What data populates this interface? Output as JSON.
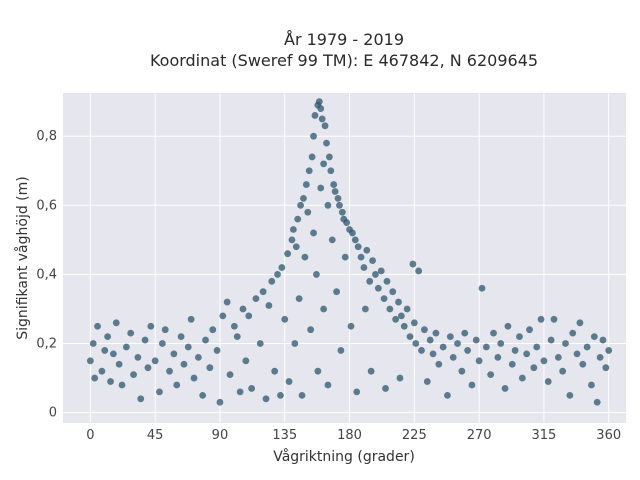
{
  "chart_data": {
    "type": "scatter",
    "title_lines": [
      "År 1979 - 2019",
      "Koordinat (Sweref 99 TM): E 467842, N 6209645"
    ],
    "xlabel": "Vågriktning (grader)",
    "ylabel": "Signifikant våghöjd (m)",
    "xlim": [
      -19,
      372
    ],
    "ylim": [
      -0.03,
      0.925
    ],
    "x_ticks": [
      {
        "value": 0,
        "label": "0"
      },
      {
        "value": 45,
        "label": "45"
      },
      {
        "value": 90,
        "label": "90"
      },
      {
        "value": 135,
        "label": "135"
      },
      {
        "value": 180,
        "label": "180"
      },
      {
        "value": 225,
        "label": "225"
      },
      {
        "value": 270,
        "label": "270"
      },
      {
        "value": 315,
        "label": "315"
      },
      {
        "value": 360,
        "label": "360"
      }
    ],
    "y_ticks": [
      {
        "value": 0,
        "label": "0"
      },
      {
        "value": 0.2,
        "label": "0,2"
      },
      {
        "value": 0.4,
        "label": "0,4"
      },
      {
        "value": 0.6,
        "label": "0,6"
      },
      {
        "value": 0.8,
        "label": "0,8"
      }
    ],
    "grid": true,
    "marker_color": "#2e566d",
    "background_color": "#e5e6ee",
    "points": [
      [
        0,
        0.15
      ],
      [
        2,
        0.2
      ],
      [
        3,
        0.1
      ],
      [
        5,
        0.25
      ],
      [
        8,
        0.12
      ],
      [
        10,
        0.18
      ],
      [
        12,
        0.22
      ],
      [
        14,
        0.09
      ],
      [
        16,
        0.17
      ],
      [
        18,
        0.26
      ],
      [
        20,
        0.14
      ],
      [
        22,
        0.08
      ],
      [
        25,
        0.19
      ],
      [
        28,
        0.23
      ],
      [
        30,
        0.11
      ],
      [
        33,
        0.16
      ],
      [
        35,
        0.04
      ],
      [
        38,
        0.21
      ],
      [
        40,
        0.13
      ],
      [
        42,
        0.25
      ],
      [
        45,
        0.15
      ],
      [
        48,
        0.06
      ],
      [
        50,
        0.2
      ],
      [
        52,
        0.24
      ],
      [
        55,
        0.12
      ],
      [
        58,
        0.17
      ],
      [
        60,
        0.08
      ],
      [
        63,
        0.22
      ],
      [
        65,
        0.14
      ],
      [
        68,
        0.19
      ],
      [
        70,
        0.27
      ],
      [
        72,
        0.1
      ],
      [
        75,
        0.16
      ],
      [
        78,
        0.05
      ],
      [
        80,
        0.21
      ],
      [
        83,
        0.13
      ],
      [
        85,
        0.24
      ],
      [
        88,
        0.18
      ],
      [
        90,
        0.03
      ],
      [
        92,
        0.28
      ],
      [
        95,
        0.32
      ],
      [
        97,
        0.11
      ],
      [
        100,
        0.25
      ],
      [
        102,
        0.22
      ],
      [
        104,
        0.06
      ],
      [
        106,
        0.3
      ],
      [
        108,
        0.15
      ],
      [
        110,
        0.28
      ],
      [
        112,
        0.07
      ],
      [
        115,
        0.33
      ],
      [
        118,
        0.2
      ],
      [
        120,
        0.35
      ],
      [
        122,
        0.04
      ],
      [
        124,
        0.31
      ],
      [
        126,
        0.38
      ],
      [
        128,
        0.12
      ],
      [
        130,
        0.4
      ],
      [
        132,
        0.05
      ],
      [
        133,
        0.42
      ],
      [
        135,
        0.27
      ],
      [
        137,
        0.46
      ],
      [
        138,
        0.09
      ],
      [
        140,
        0.5
      ],
      [
        141,
        0.53
      ],
      [
        142,
        0.2
      ],
      [
        143,
        0.48
      ],
      [
        144,
        0.56
      ],
      [
        145,
        0.33
      ],
      [
        146,
        0.6
      ],
      [
        147,
        0.05
      ],
      [
        148,
        0.62
      ],
      [
        149,
        0.45
      ],
      [
        150,
        0.66
      ],
      [
        151,
        0.58
      ],
      [
        152,
        0.7
      ],
      [
        153,
        0.24
      ],
      [
        154,
        0.74
      ],
      [
        155,
        0.8
      ],
      [
        155,
        0.52
      ],
      [
        156,
        0.86
      ],
      [
        157,
        0.4
      ],
      [
        158,
        0.89
      ],
      [
        158,
        0.12
      ],
      [
        159,
        0.9
      ],
      [
        160,
        0.88
      ],
      [
        160,
        0.65
      ],
      [
        161,
        0.85
      ],
      [
        162,
        0.72
      ],
      [
        162,
        0.3
      ],
      [
        163,
        0.83
      ],
      [
        164,
        0.78
      ],
      [
        165,
        0.6
      ],
      [
        165,
        0.08
      ],
      [
        166,
        0.74
      ],
      [
        167,
        0.7
      ],
      [
        168,
        0.5
      ],
      [
        169,
        0.66
      ],
      [
        170,
        0.64
      ],
      [
        171,
        0.35
      ],
      [
        172,
        0.62
      ],
      [
        173,
        0.6
      ],
      [
        174,
        0.18
      ],
      [
        175,
        0.58
      ],
      [
        176,
        0.56
      ],
      [
        177,
        0.45
      ],
      [
        178,
        0.55
      ],
      [
        180,
        0.53
      ],
      [
        181,
        0.25
      ],
      [
        182,
        0.52
      ],
      [
        184,
        0.5
      ],
      [
        185,
        0.06
      ],
      [
        186,
        0.48
      ],
      [
        188,
        0.45
      ],
      [
        190,
        0.42
      ],
      [
        191,
        0.3
      ],
      [
        192,
        0.47
      ],
      [
        194,
        0.38
      ],
      [
        195,
        0.12
      ],
      [
        196,
        0.44
      ],
      [
        198,
        0.4
      ],
      [
        200,
        0.36
      ],
      [
        202,
        0.41
      ],
      [
        204,
        0.33
      ],
      [
        205,
        0.07
      ],
      [
        206,
        0.38
      ],
      [
        208,
        0.3
      ],
      [
        210,
        0.35
      ],
      [
        212,
        0.27
      ],
      [
        214,
        0.32
      ],
      [
        215,
        0.1
      ],
      [
        216,
        0.28
      ],
      [
        218,
        0.25
      ],
      [
        220,
        0.3
      ],
      [
        222,
        0.22
      ],
      [
        224,
        0.43
      ],
      [
        225,
        0.26
      ],
      [
        226,
        0.2
      ],
      [
        228,
        0.41
      ],
      [
        230,
        0.18
      ],
      [
        232,
        0.24
      ],
      [
        234,
        0.09
      ],
      [
        236,
        0.21
      ],
      [
        238,
        0.17
      ],
      [
        240,
        0.23
      ],
      [
        242,
        0.14
      ],
      [
        245,
        0.19
      ],
      [
        248,
        0.05
      ],
      [
        250,
        0.22
      ],
      [
        252,
        0.16
      ],
      [
        255,
        0.2
      ],
      [
        258,
        0.12
      ],
      [
        260,
        0.23
      ],
      [
        262,
        0.18
      ],
      [
        265,
        0.08
      ],
      [
        268,
        0.21
      ],
      [
        270,
        0.15
      ],
      [
        272,
        0.36
      ],
      [
        275,
        0.19
      ],
      [
        278,
        0.11
      ],
      [
        280,
        0.23
      ],
      [
        283,
        0.16
      ],
      [
        285,
        0.2
      ],
      [
        288,
        0.07
      ],
      [
        290,
        0.25
      ],
      [
        293,
        0.14
      ],
      [
        295,
        0.18
      ],
      [
        298,
        0.22
      ],
      [
        300,
        0.1
      ],
      [
        303,
        0.17
      ],
      [
        305,
        0.24
      ],
      [
        308,
        0.13
      ],
      [
        310,
        0.19
      ],
      [
        313,
        0.27
      ],
      [
        315,
        0.15
      ],
      [
        318,
        0.09
      ],
      [
        320,
        0.21
      ],
      [
        322,
        0.27
      ],
      [
        325,
        0.16
      ],
      [
        328,
        0.12
      ],
      [
        330,
        0.2
      ],
      [
        333,
        0.05
      ],
      [
        335,
        0.23
      ],
      [
        338,
        0.17
      ],
      [
        340,
        0.26
      ],
      [
        342,
        0.14
      ],
      [
        345,
        0.19
      ],
      [
        348,
        0.08
      ],
      [
        350,
        0.22
      ],
      [
        352,
        0.03
      ],
      [
        354,
        0.16
      ],
      [
        356,
        0.21
      ],
      [
        358,
        0.13
      ],
      [
        360,
        0.18
      ]
    ]
  }
}
